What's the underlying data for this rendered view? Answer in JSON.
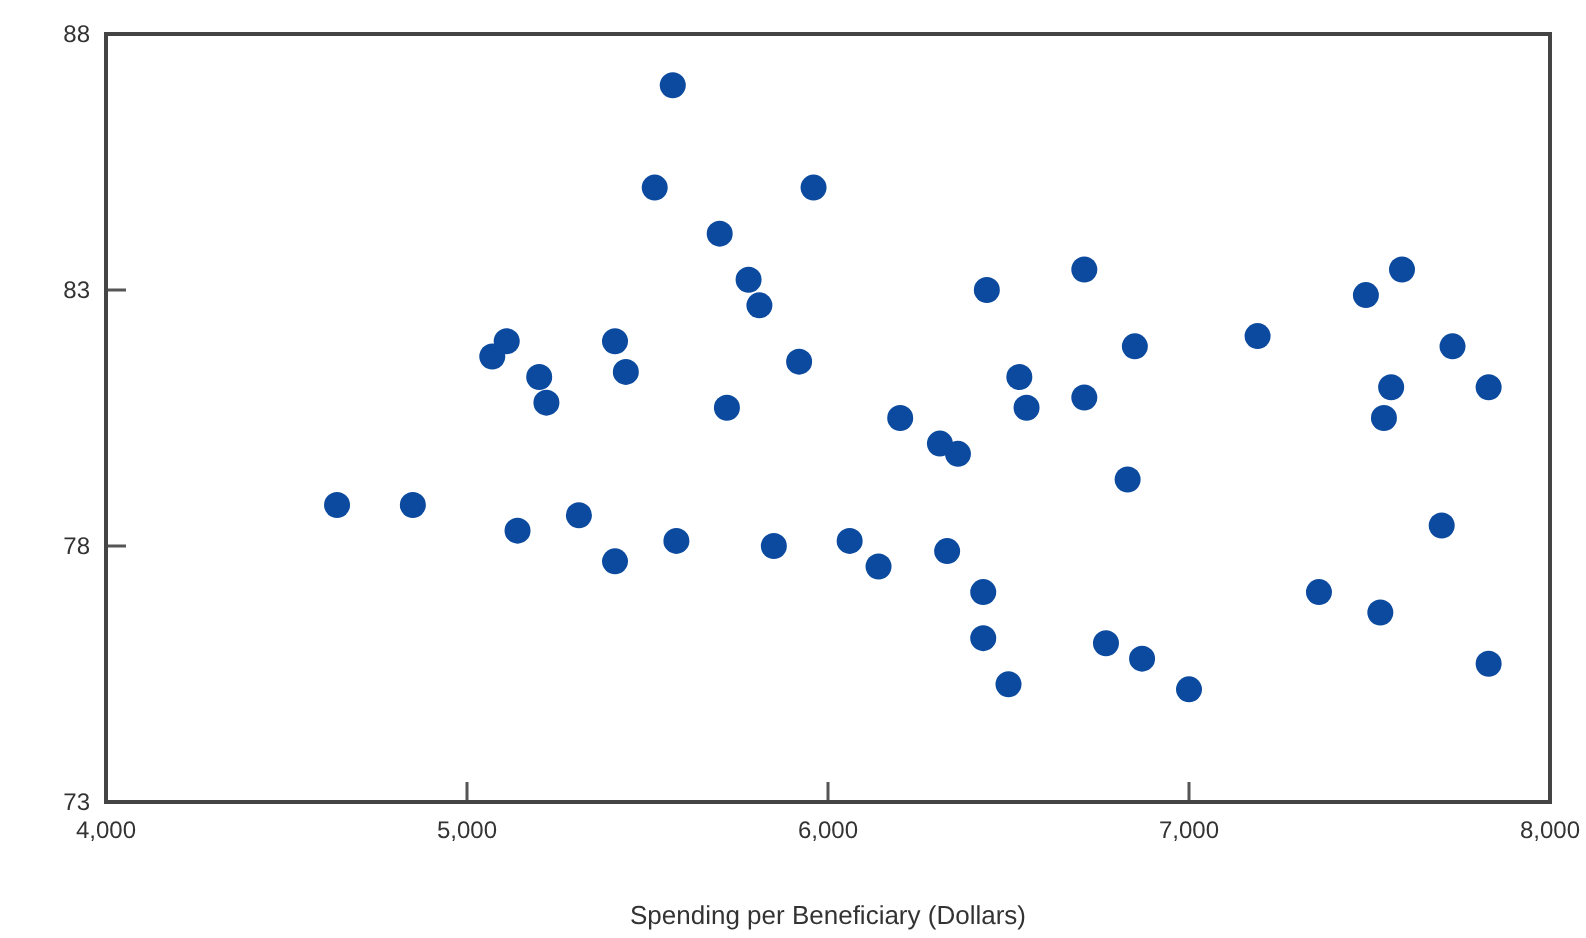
{
  "chart_data": {
    "type": "scatter",
    "xlabel": "Spending per Beneficiary (Dollars)",
    "marker": "circle",
    "grid": false,
    "xlim": [
      4000,
      8000
    ],
    "xticks": [
      {
        "value": 4000,
        "label": "4,000"
      },
      {
        "value": 5000,
        "label": "5,000"
      },
      {
        "value": 6000,
        "label": "6,000"
      },
      {
        "value": 7000,
        "label": "7,000"
      },
      {
        "value": 8000,
        "label": "8,000"
      }
    ],
    "ylim": [
      73,
      88
    ],
    "yticks": [
      73,
      78,
      83,
      88
    ],
    "series": [
      {
        "color": "#0b4a9e",
        "x": [
          4640,
          4850,
          5070,
          5110,
          5200,
          5220,
          5140,
          5310,
          5410,
          5410,
          5440,
          5570,
          5520,
          5700,
          5780,
          5810,
          5720,
          5580,
          5850,
          5920,
          5960,
          6060,
          6140,
          6200,
          6310,
          6360,
          6330,
          6430,
          6430,
          6440,
          6500,
          6530,
          6550,
          6710,
          6710,
          6770,
          6830,
          6850,
          6870,
          7000,
          7190,
          7360,
          7490,
          7590,
          7530,
          7540,
          7560,
          7700,
          7730,
          7830,
          7830
        ],
        "values": [
          78.8,
          78.8,
          81.7,
          82.0,
          81.3,
          80.8,
          78.3,
          78.6,
          77.7,
          82.0,
          81.4,
          87.0,
          85.0,
          84.1,
          83.2,
          82.7,
          80.7,
          78.1,
          78.0,
          81.6,
          85.0,
          78.1,
          77.6,
          80.5,
          80.0,
          79.8,
          77.9,
          77.1,
          76.2,
          83.0,
          75.3,
          81.3,
          80.7,
          83.4,
          80.9,
          76.1,
          79.3,
          81.9,
          75.8,
          75.2,
          82.1,
          77.1,
          82.9,
          83.4,
          76.7,
          80.5,
          81.1,
          78.4,
          81.9,
          81.1,
          75.7
        ]
      }
    ]
  }
}
